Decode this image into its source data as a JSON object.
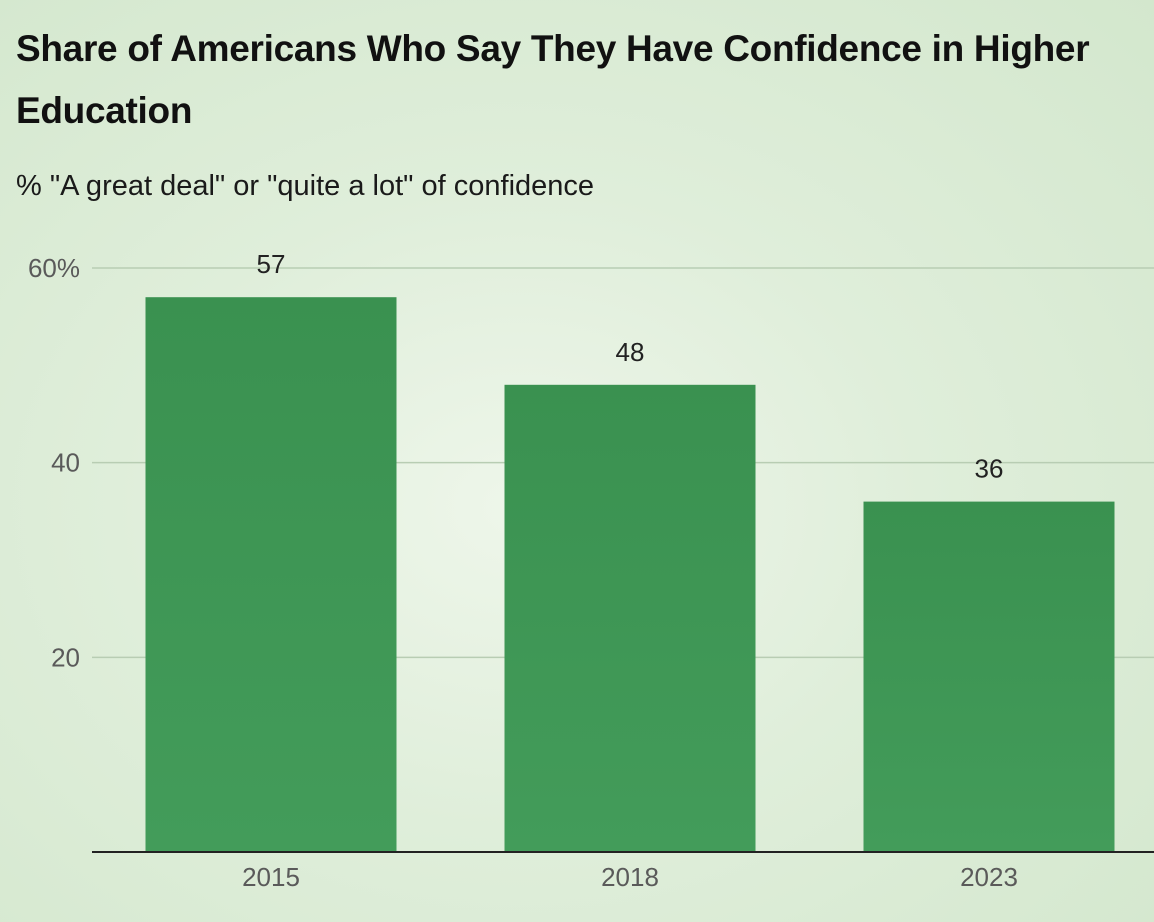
{
  "chart_data": {
    "type": "bar",
    "title": "Share of Americans Who Say They Have Confidence in Higher Education",
    "subtitle": "% \"A great deal\" or \"quite a lot\" of confidence",
    "categories": [
      "2015",
      "2018",
      "2023"
    ],
    "values": [
      57,
      48,
      36
    ],
    "data_labels": [
      "57",
      "48",
      "36"
    ],
    "ylim": [
      0,
      60
    ],
    "y_ticks": [
      {
        "value": 60,
        "label": "60%"
      },
      {
        "value": 40,
        "label": "40"
      },
      {
        "value": 20,
        "label": "20"
      }
    ],
    "xlabel": "",
    "ylabel": "",
    "grid": true,
    "legend": "none",
    "colors": {
      "bar": "#3d9655",
      "grid": "#b8cdb3",
      "axis": "#222222"
    }
  }
}
